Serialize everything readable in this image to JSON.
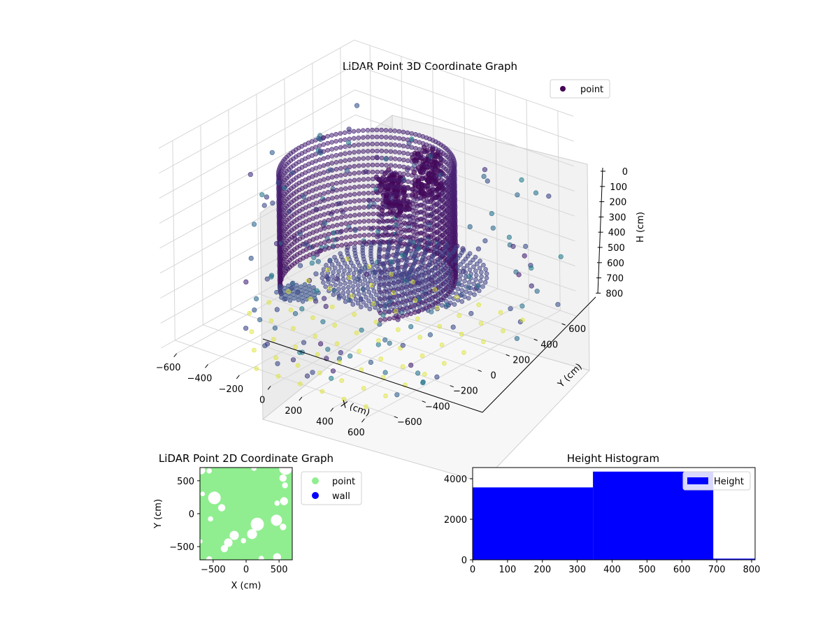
{
  "chart_data": [
    {
      "type": "scatter",
      "projection": "3d",
      "title": "LiDAR Point 3D Coordinate Graph",
      "xlabel": "X (cm)",
      "ylabel": "Y (cm)",
      "zlabel": "H (cm)",
      "xlim": [
        -700,
        700
      ],
      "ylim": [
        -700,
        700
      ],
      "zlim": [
        800,
        0
      ],
      "xticks": [
        "−600",
        "−400",
        "−200",
        "0",
        "200",
        "400",
        "600"
      ],
      "yticks": [
        "−600",
        "−400",
        "−200",
        "0",
        "200",
        "400",
        "600"
      ],
      "zticks": [
        "0",
        "100",
        "200",
        "300",
        "400",
        "500",
        "600",
        "700",
        "800"
      ],
      "grid": true,
      "legend": [
        {
          "label": "point",
          "color": "#440154"
        }
      ],
      "legend_position": "top-right",
      "colormap": "viridis",
      "structures": [
        {
          "shape": "wall_arc",
          "radius": 420,
          "angle_range_deg": [
            -40,
            235
          ],
          "z_range": [
            150,
            620
          ]
        },
        {
          "shape": "floor_disc",
          "center": [
            100,
            150
          ],
          "radius": 420,
          "z": 600
        },
        {
          "shape": "blob",
          "center": [
            60,
            370
          ],
          "z_range": [
            170,
            360
          ]
        },
        {
          "shape": "blob",
          "center": [
            110,
            70
          ],
          "z_range": [
            170,
            310
          ]
        },
        {
          "shape": "patch",
          "center": [
            -380,
            -80
          ],
          "z": 700
        },
        {
          "shape": "grid_floor",
          "x_range": [
            -600,
            600
          ],
          "y_range": [
            -600,
            600
          ],
          "z": 800
        }
      ]
    },
    {
      "type": "scatter",
      "title": "LiDAR Point 2D Coordinate Graph",
      "xlabel": "X (cm)",
      "ylabel": "Y (cm)",
      "xlim": [
        -700,
        700
      ],
      "ylim": [
        -700,
        700
      ],
      "xticks": [
        -500,
        0,
        500
      ],
      "yticks": [
        -500,
        0,
        500
      ],
      "series": [
        {
          "name": "point",
          "color": "#90ee90"
        },
        {
          "name": "wall",
          "color": "#0000ff"
        }
      ],
      "legend_position": "outside-right",
      "holes": [
        {
          "x": 600,
          "y": 690,
          "r": 100
        },
        {
          "x": 560,
          "y": 540,
          "r": 55
        },
        {
          "x": 590,
          "y": 430,
          "r": 45
        },
        {
          "x": 575,
          "y": 190,
          "r": 60
        },
        {
          "x": 470,
          "y": 160,
          "r": 40
        },
        {
          "x": 460,
          "y": -100,
          "r": 85
        },
        {
          "x": 560,
          "y": -200,
          "r": 50
        },
        {
          "x": 170,
          "y": -160,
          "r": 100
        },
        {
          "x": 90,
          "y": -310,
          "r": 75
        },
        {
          "x": -180,
          "y": -330,
          "r": 70
        },
        {
          "x": -270,
          "y": -440,
          "r": 65
        },
        {
          "x": -330,
          "y": -530,
          "r": 55
        },
        {
          "x": -40,
          "y": -410,
          "r": 40
        },
        {
          "x": -480,
          "y": 240,
          "r": 95
        },
        {
          "x": -370,
          "y": 90,
          "r": 55
        },
        {
          "x": -540,
          "y": -80,
          "r": 40
        },
        {
          "x": -660,
          "y": 300,
          "r": 35
        },
        {
          "x": -680,
          "y": 660,
          "r": 60
        },
        {
          "x": -560,
          "y": 650,
          "r": 40
        },
        {
          "x": 120,
          "y": 690,
          "r": 40
        },
        {
          "x": 470,
          "y": -660,
          "r": 60
        },
        {
          "x": 230,
          "y": -680,
          "r": 40
        },
        {
          "x": -560,
          "y": -690,
          "r": 45
        },
        {
          "x": -690,
          "y": -420,
          "r": 30
        }
      ]
    },
    {
      "type": "bar",
      "title": "Height Histogram",
      "xlim": [
        0,
        810
      ],
      "ylim": [
        0,
        4550
      ],
      "xticks": [
        0,
        100,
        200,
        300,
        400,
        500,
        600,
        700,
        800
      ],
      "yticks": [
        0,
        2000,
        4000
      ],
      "series": [
        {
          "name": "Height",
          "color": "#0000ff",
          "bins": [
            {
              "x0": 0,
              "x1": 345,
              "value": 3570
            },
            {
              "x0": 345,
              "x1": 690,
              "value": 4350
            },
            {
              "x0": 690,
              "x1": 810,
              "value": 60
            }
          ]
        }
      ],
      "legend_position": "top-right"
    }
  ]
}
